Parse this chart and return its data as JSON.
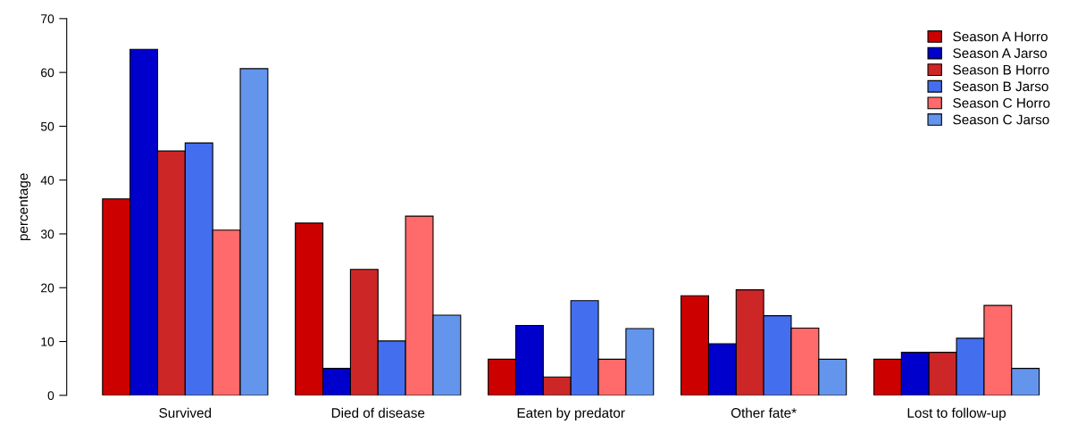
{
  "chart_data": {
    "type": "bar",
    "ylabel": "percentage",
    "categories": [
      "Survived",
      "Died of disease",
      "Eaten by predator",
      "Other fate*",
      "Lost to follow-up"
    ],
    "series": [
      {
        "name": "Season A Horro",
        "color": "#cd0000",
        "values": [
          36.5,
          32.0,
          6.7,
          18.5,
          6.7
        ]
      },
      {
        "name": "Season A Jarso",
        "color": "#0000cd",
        "values": [
          64.3,
          5.0,
          13.0,
          9.6,
          8.0
        ]
      },
      {
        "name": "Season B Horro",
        "color": "#cd2626",
        "values": [
          45.4,
          23.4,
          3.4,
          19.6,
          8.0
        ]
      },
      {
        "name": "Season B Jarso",
        "color": "#436eee",
        "values": [
          46.9,
          10.1,
          17.6,
          14.8,
          10.6
        ]
      },
      {
        "name": "Season C Horro",
        "color": "#ff6a6a",
        "values": [
          30.7,
          33.3,
          6.7,
          12.5,
          16.7
        ]
      },
      {
        "name": "Season C Jarso",
        "color": "#6495ed",
        "values": [
          60.7,
          14.9,
          12.4,
          6.7,
          5.0
        ]
      }
    ],
    "ylim": [
      0,
      70
    ],
    "yticks": [
      0,
      10,
      20,
      30,
      40,
      50,
      60,
      70
    ],
    "grid": false,
    "legend": "top right"
  }
}
